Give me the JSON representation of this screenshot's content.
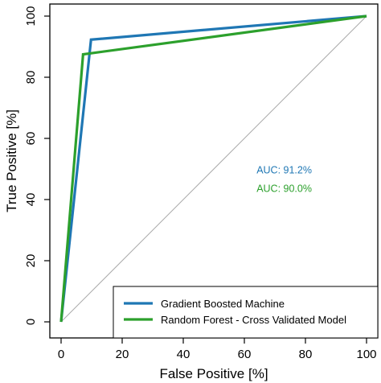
{
  "chart_data": {
    "type": "line",
    "xlabel": "False Positive [%]",
    "ylabel": "True Positive [%]",
    "xlim": [
      0,
      100
    ],
    "ylim": [
      0,
      100
    ],
    "xticks": [
      0,
      20,
      40,
      60,
      80,
      100
    ],
    "yticks": [
      0,
      20,
      40,
      60,
      80,
      100
    ],
    "grid": false,
    "legend_position": "bottom-right",
    "reference_line": {
      "from": [
        0,
        0
      ],
      "to": [
        100,
        100
      ],
      "color": "#aaaaaa"
    },
    "series": [
      {
        "name": "Gradient Boosted Machine",
        "color": "#1f77b4",
        "x": [
          0,
          9.8,
          100
        ],
        "y": [
          0,
          92.3,
          100
        ]
      },
      {
        "name": "Random Forest - Cross Validated Model",
        "color": "#2ca02c",
        "x": [
          0,
          7.2,
          100
        ],
        "y": [
          0,
          87.5,
          100
        ]
      }
    ],
    "annotations": [
      {
        "text": "AUC: 91.2%",
        "color": "#1f77b4",
        "x": 64,
        "y": 48.5
      },
      {
        "text": "AUC: 90.0%",
        "color": "#2ca02c",
        "x": 64,
        "y": 42.5
      }
    ]
  }
}
